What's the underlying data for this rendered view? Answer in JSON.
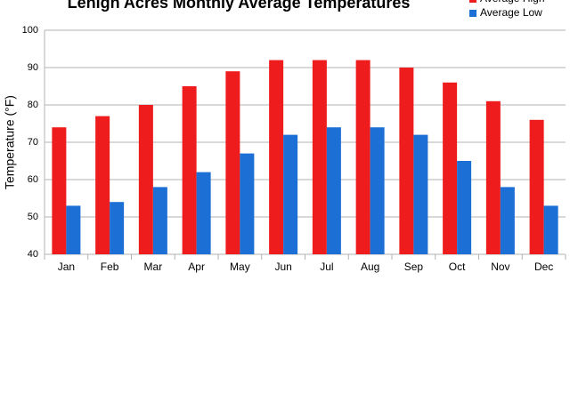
{
  "chart_data": {
    "type": "bar",
    "title": "Lehigh Acres Monthly Average Temperatures",
    "y_label": "Temperature (°F)",
    "categories": [
      "Jan",
      "Feb",
      "Mar",
      "Apr",
      "May",
      "Jun",
      "Jul",
      "Aug",
      "Sep",
      "Oct",
      "Nov",
      "Dec"
    ],
    "series": [
      {
        "name": "Average High",
        "color": "#ee1c1c",
        "values": [
          74,
          77,
          80,
          85,
          89,
          92,
          92,
          92,
          90,
          86,
          81,
          76
        ]
      },
      {
        "name": "Average Low",
        "color": "#1c6fd4",
        "values": [
          53,
          54,
          58,
          62,
          67,
          72,
          74,
          74,
          72,
          65,
          58,
          53
        ]
      }
    ],
    "ylim": [
      40,
      100
    ],
    "yticks": [
      40,
      50,
      60,
      70,
      80,
      90,
      100
    ],
    "grid": true,
    "legend": "top-right"
  }
}
